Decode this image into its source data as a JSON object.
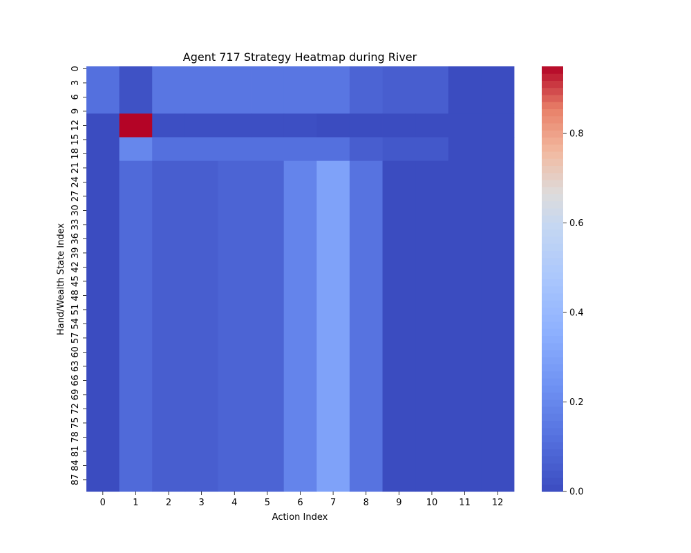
{
  "chart_data": {
    "type": "heatmap",
    "title": "Agent 717 Strategy Heatmap during River",
    "xlabel": "Action Index",
    "ylabel": "Hand/Wealth State Index",
    "x_ticks": [
      "0",
      "1",
      "2",
      "3",
      "4",
      "5",
      "6",
      "7",
      "8",
      "9",
      "10",
      "11",
      "12"
    ],
    "y_ticks": [
      "0",
      "3",
      "6",
      "9",
      "12",
      "15",
      "18",
      "21",
      "24",
      "27",
      "30",
      "33",
      "36",
      "39",
      "42",
      "45",
      "48",
      "51",
      "54",
      "57",
      "60",
      "63",
      "66",
      "69",
      "72",
      "75",
      "78",
      "81",
      "84",
      "87"
    ],
    "n_rows": 90,
    "n_cols": 13,
    "row_groups": [
      {
        "rows": [
          0,
          9
        ],
        "values": [
          0.12,
          0.02,
          0.14,
          0.14,
          0.14,
          0.14,
          0.14,
          0.14,
          0.08,
          0.06,
          0.06,
          0.0,
          0.0
        ]
      },
      {
        "rows": [
          10,
          14
        ],
        "values": [
          0.0,
          0.95,
          0.01,
          0.01,
          0.01,
          0.01,
          0.01,
          0.0,
          0.0,
          0.0,
          0.0,
          0.0,
          0.0
        ]
      },
      {
        "rows": [
          15,
          19
        ],
        "values": [
          0.0,
          0.2,
          0.12,
          0.12,
          0.12,
          0.12,
          0.12,
          0.12,
          0.06,
          0.04,
          0.04,
          0.0,
          0.0
        ]
      },
      {
        "rows": [
          20,
          89
        ],
        "values": [
          0.0,
          0.1,
          0.06,
          0.06,
          0.08,
          0.08,
          0.19,
          0.3,
          0.13,
          0.0,
          0.0,
          0.0,
          0.0
        ]
      }
    ],
    "colorbar": {
      "cmap": "coolwarm",
      "min": 0.0,
      "max": 0.95,
      "ticks": [
        "0.0",
        "0.2",
        "0.4",
        "0.6",
        "0.8"
      ]
    }
  }
}
